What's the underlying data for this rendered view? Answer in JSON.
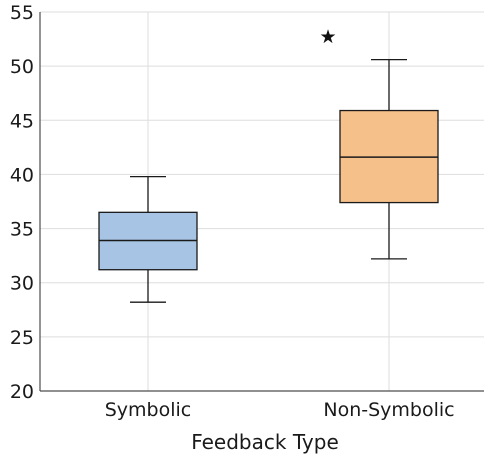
{
  "chart_data": {
    "type": "box",
    "title": "",
    "xlabel": "Feedback Type",
    "ylabel": "",
    "ylim": [
      20,
      55
    ],
    "yticks": [
      20,
      25,
      30,
      35,
      40,
      45,
      50,
      55
    ],
    "grid": true,
    "categories": [
      "Symbolic",
      "Non-Symbolic"
    ],
    "boxes": [
      {
        "category": "Symbolic",
        "whisker_low": 28.2,
        "q1": 31.2,
        "median": 33.9,
        "q3": 36.5,
        "whisker_high": 39.8,
        "outliers": [],
        "color": "#a7c4e5"
      },
      {
        "category": "Non-Symbolic",
        "whisker_low": 32.2,
        "q1": 37.4,
        "median": 41.6,
        "q3": 45.9,
        "whisker_high": 50.6,
        "outliers": [
          52.8
        ],
        "color": "#f5c08a"
      }
    ],
    "outlier_marker": "★",
    "colors": {
      "grid": "#dedede",
      "axis": "#4d4d4d",
      "edge": "#1a1a1a"
    }
  }
}
